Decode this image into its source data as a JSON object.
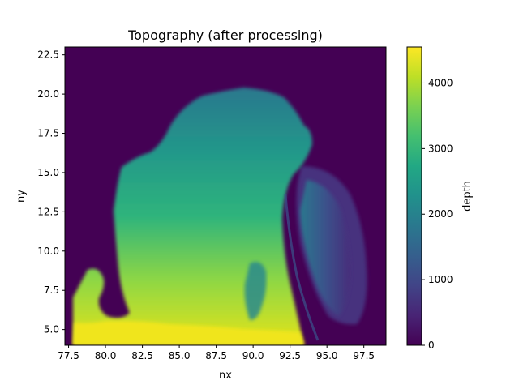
{
  "chart_data": {
    "type": "heatmap",
    "title": "Topography (after processing)",
    "xlabel": "nx",
    "ylabel": "ny",
    "xlim": [
      77.25,
      99.0
    ],
    "ylim": [
      4.0,
      23.0
    ],
    "xticks": [
      "77.5",
      "80.0",
      "82.5",
      "85.0",
      "87.5",
      "90.0",
      "92.5",
      "95.0",
      "97.5"
    ],
    "yticks": [
      "5.0",
      "7.5",
      "10.0",
      "12.5",
      "15.0",
      "17.5",
      "20.0",
      "22.5"
    ],
    "colormap": "viridis",
    "colorbar": {
      "label": "depth",
      "range": [
        0,
        4550
      ],
      "ticks": [
        "0",
        "1000",
        "2000",
        "3000",
        "4000"
      ]
    },
    "landmask_value": 0,
    "features": [
      {
        "region": "central sea basin",
        "approx_depth": 3000
      },
      {
        "region": "southern basin (low ny)",
        "approx_depth": 4300
      },
      {
        "region": "eastern trench/ridge near nx 93-97",
        "approx_depth": 1500
      },
      {
        "region": "land (outside basin)",
        "approx_depth": 0
      }
    ]
  }
}
